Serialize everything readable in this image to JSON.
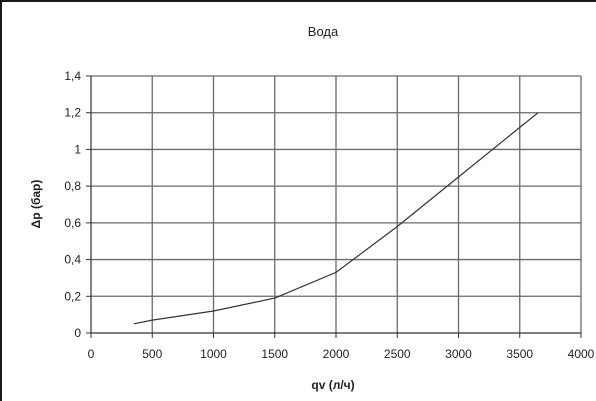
{
  "chart_data": {
    "type": "line",
    "title": "Вода",
    "xlabel": "qv (л/ч)",
    "ylabel": "Δp (бар)",
    "xlim": [
      0,
      4000
    ],
    "ylim": [
      0,
      1.4
    ],
    "x_ticks": [
      0,
      500,
      1000,
      1500,
      2000,
      2500,
      3000,
      3500,
      4000
    ],
    "x_tick_labels": [
      "0",
      "500",
      "1000",
      "1500",
      "2000",
      "2500",
      "3000",
      "3500",
      "4000"
    ],
    "y_ticks": [
      0,
      0.2,
      0.4,
      0.6,
      0.8,
      1,
      1.2,
      1.4
    ],
    "y_tick_labels": [
      "0",
      "0,2",
      "0,4",
      "0,6",
      "0,8",
      "1",
      "1,2",
      "1,4"
    ],
    "grid": true,
    "legend": "none",
    "series": [
      {
        "color": "#333333",
        "x": [
          350,
          500,
          1000,
          1500,
          2000,
          2500,
          3000,
          3500,
          3650
        ],
        "y": [
          0.05,
          0.07,
          0.12,
          0.19,
          0.33,
          0.58,
          0.85,
          1.12,
          1.2
        ]
      }
    ]
  }
}
